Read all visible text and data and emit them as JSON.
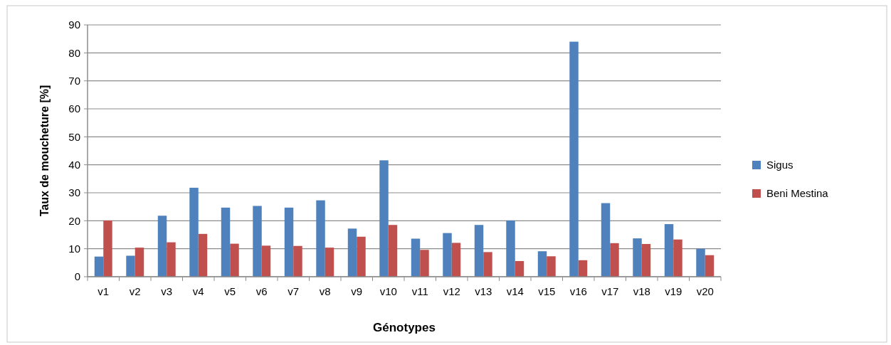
{
  "chart_data": {
    "type": "bar",
    "xlabel": "Génotypes",
    "ylabel": "Taux de moucheture [%]",
    "categories": [
      "v1",
      "v2",
      "v3",
      "v4",
      "v5",
      "v6",
      "v7",
      "v8",
      "v9",
      "v10",
      "v11",
      "v12",
      "v13",
      "v14",
      "v15",
      "v16",
      "v17",
      "v18",
      "v19",
      "v20"
    ],
    "series": [
      {
        "name": "Sigus",
        "color": "#4f81bd",
        "values": [
          7.2,
          7.5,
          21.8,
          31.8,
          24.7,
          25.3,
          24.7,
          27.3,
          17.2,
          41.6,
          13.6,
          15.6,
          18.5,
          20.1,
          9.1,
          84,
          26.3,
          13.7,
          18.8,
          10.0
        ]
      },
      {
        "name": "Beni Mestina",
        "color": "#c0504d",
        "values": [
          20.1,
          10.4,
          12.3,
          15.3,
          11.8,
          11.1,
          11.0,
          10.4,
          14.3,
          18.5,
          9.6,
          12.1,
          8.8,
          5.6,
          7.3,
          5.9,
          12.0,
          11.7,
          13.3,
          7.7
        ]
      }
    ],
    "ylim": [
      0,
      90
    ],
    "yticks": [
      0,
      10,
      20,
      30,
      40,
      50,
      60,
      70,
      80,
      90
    ],
    "grid": "y",
    "legend": "right"
  }
}
